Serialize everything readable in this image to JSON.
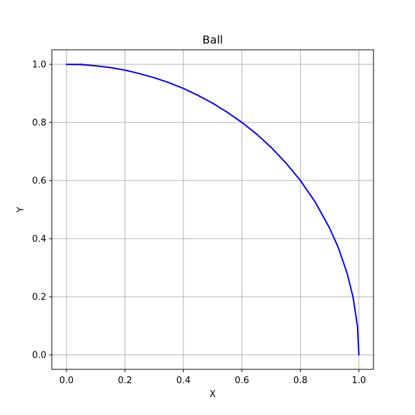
{
  "chart_data": {
    "type": "line",
    "title": "Ball",
    "xlabel": "X",
    "ylabel": "Y",
    "xlim": [
      -0.05,
      1.05
    ],
    "ylim": [
      -0.05,
      1.05
    ],
    "xticks": [
      0.0,
      0.2,
      0.4,
      0.6,
      0.8,
      1.0
    ],
    "yticks": [
      0.0,
      0.2,
      0.4,
      0.6,
      0.8,
      1.0
    ],
    "xtick_labels": [
      "0.0",
      "0.2",
      "0.4",
      "0.6",
      "0.8",
      "1.0"
    ],
    "ytick_labels": [
      "0.0",
      "0.2",
      "0.4",
      "0.6",
      "0.8",
      "1.0"
    ],
    "grid": true,
    "series": [
      {
        "color": "#ff0000",
        "style": "dashed",
        "x": [
          0.0,
          0.05,
          0.1,
          0.15,
          0.2,
          0.25,
          0.3,
          0.35,
          0.4,
          0.45,
          0.5,
          0.55,
          0.6,
          0.65,
          0.7,
          0.75,
          0.8,
          0.85,
          0.9,
          0.93,
          0.96,
          0.98,
          0.995,
          1.0
        ],
        "y": [
          1.0,
          1.001,
          0.995,
          0.988,
          0.98,
          0.968,
          0.954,
          0.937,
          0.917,
          0.893,
          0.866,
          0.835,
          0.8,
          0.76,
          0.714,
          0.661,
          0.6,
          0.527,
          0.436,
          0.368,
          0.28,
          0.199,
          0.1,
          0.0
        ]
      },
      {
        "color": "#0000ff",
        "style": "solid",
        "x": [
          0.0,
          0.05,
          0.1,
          0.15,
          0.2,
          0.25,
          0.3,
          0.35,
          0.4,
          0.45,
          0.5,
          0.55,
          0.6,
          0.65,
          0.7,
          0.75,
          0.8,
          0.85,
          0.9,
          0.93,
          0.96,
          0.98,
          0.995,
          1.0
        ],
        "y": [
          1.0,
          0.999,
          0.995,
          0.989,
          0.98,
          0.968,
          0.954,
          0.937,
          0.917,
          0.893,
          0.866,
          0.835,
          0.8,
          0.76,
          0.714,
          0.661,
          0.6,
          0.527,
          0.436,
          0.368,
          0.28,
          0.199,
          0.1,
          0.0
        ]
      }
    ]
  }
}
